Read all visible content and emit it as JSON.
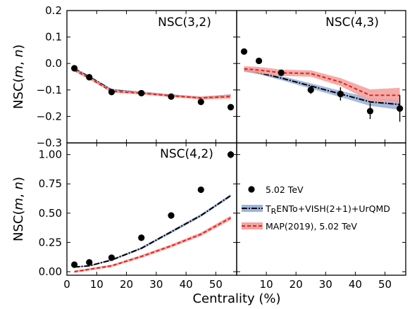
{
  "chart_data": [
    {
      "type": "line",
      "title": "NSC(3,2)",
      "ylabel": "NSC(m, n)",
      "xlim": [
        0,
        57
      ],
      "ylim": [
        -0.3,
        0.2
      ],
      "yticks": [
        -0.3,
        -0.2,
        -0.1,
        0.0,
        0.1,
        0.2
      ],
      "ytick_labels": [
        "−0.3",
        "−0.2",
        "−0.1",
        "0.0",
        "0.1",
        "0.2"
      ],
      "xticks": [
        0,
        10,
        20,
        30,
        40,
        50
      ],
      "data": {
        "x": [
          2.5,
          7.5,
          15,
          25,
          35,
          45,
          55
        ],
        "y": [
          -0.018,
          -0.052,
          -0.108,
          -0.112,
          -0.125,
          -0.145,
          -0.165
        ],
        "err": [
          0.005,
          0.005,
          0.005,
          0.005,
          0.005,
          0.005,
          0.005
        ]
      },
      "trento": {
        "x": [
          2.5,
          7.5,
          15,
          25,
          35,
          45,
          55
        ],
        "y": [
          -0.02,
          -0.05,
          -0.1,
          -0.11,
          -0.12,
          -0.13,
          -0.12
        ],
        "band": [
          0.004,
          0.004,
          0.004,
          0.004,
          0.004,
          0.004,
          0.004
        ]
      },
      "map": {
        "x": [
          2.5,
          7.5,
          15,
          25,
          35,
          45,
          55
        ],
        "y": [
          -0.025,
          -0.055,
          -0.105,
          -0.112,
          -0.122,
          -0.13,
          -0.125
        ],
        "band": [
          0.005,
          0.005,
          0.005,
          0.005,
          0.005,
          0.006,
          0.008
        ]
      }
    },
    {
      "type": "line",
      "title": "NSC(4,3)",
      "xlim": [
        0,
        57
      ],
      "ylim": [
        -0.3,
        0.2
      ],
      "data": {
        "x": [
          2.5,
          7.5,
          15,
          25,
          35,
          45,
          55
        ],
        "y": [
          0.045,
          0.01,
          -0.035,
          -0.1,
          -0.115,
          -0.18,
          -0.17
        ],
        "err": [
          0.005,
          0.005,
          0.007,
          0.015,
          0.025,
          0.03,
          0.05
        ]
      },
      "trento": {
        "x": [
          2.5,
          7.5,
          15,
          25,
          35,
          45,
          55
        ],
        "y": [
          -0.025,
          -0.035,
          -0.055,
          -0.085,
          -0.115,
          -0.145,
          -0.155
        ],
        "band": [
          0.006,
          0.006,
          0.008,
          0.01,
          0.012,
          0.015,
          0.02
        ]
      },
      "map": {
        "x": [
          2.5,
          7.5,
          15,
          25,
          35,
          45,
          55
        ],
        "y": [
          -0.02,
          -0.025,
          -0.035,
          -0.038,
          -0.07,
          -0.12,
          -0.12
        ],
        "band": [
          0.01,
          0.012,
          0.012,
          0.012,
          0.015,
          0.022,
          0.028
        ]
      }
    },
    {
      "type": "line",
      "title": "NSC(4,2)",
      "ylabel": "NSC(m, n)",
      "xlabel": "Centrality (%)",
      "xlim": [
        0,
        57
      ],
      "ylim": [
        -0.03,
        1.1
      ],
      "yticks": [
        0.0,
        0.25,
        0.5,
        0.75,
        1.0
      ],
      "ytick_labels": [
        "0.00",
        "0.25",
        "0.50",
        "0.75",
        "1.00"
      ],
      "xticks": [
        0,
        10,
        20,
        30,
        40,
        50
      ],
      "xtick_labels": [
        "0",
        "10",
        "20",
        "30",
        "40",
        "50"
      ],
      "data": {
        "x": [
          2.5,
          7.5,
          15,
          25,
          35,
          45,
          55
        ],
        "y": [
          0.06,
          0.08,
          0.12,
          0.29,
          0.48,
          0.7,
          1.0
        ],
        "err": [
          0.005,
          0.005,
          0.01,
          0.01,
          0.01,
          0.015,
          0.03
        ]
      },
      "trento": {
        "x": [
          2.5,
          7.5,
          15,
          25,
          35,
          45,
          55
        ],
        "y": [
          0.04,
          0.05,
          0.1,
          0.2,
          0.34,
          0.48,
          0.65
        ],
        "band": [
          0.006,
          0.006,
          0.008,
          0.01,
          0.012,
          0.012,
          0.012
        ]
      },
      "map": {
        "x": [
          2.5,
          7.5,
          15,
          25,
          35,
          45,
          55
        ],
        "y": [
          0.0,
          0.02,
          0.05,
          0.13,
          0.22,
          0.32,
          0.46
        ],
        "band": [
          0.01,
          0.01,
          0.01,
          0.012,
          0.013,
          0.015,
          0.018
        ]
      }
    }
  ],
  "legend": {
    "items": [
      {
        "key": "data",
        "label": "5.02 TeV"
      },
      {
        "key": "trento",
        "label": "T",
        "sub": "R",
        "rest": "ENTo+VISH(2+1)+UrQMD"
      },
      {
        "key": "map",
        "label": "MAP(2019), 5.02 TeV"
      }
    ]
  },
  "colors": {
    "data": "#000000",
    "trento_line": "#000000",
    "trento_band": "#9db3dc",
    "map_line": "#e8201b",
    "map_band": "#f2a4a0"
  }
}
